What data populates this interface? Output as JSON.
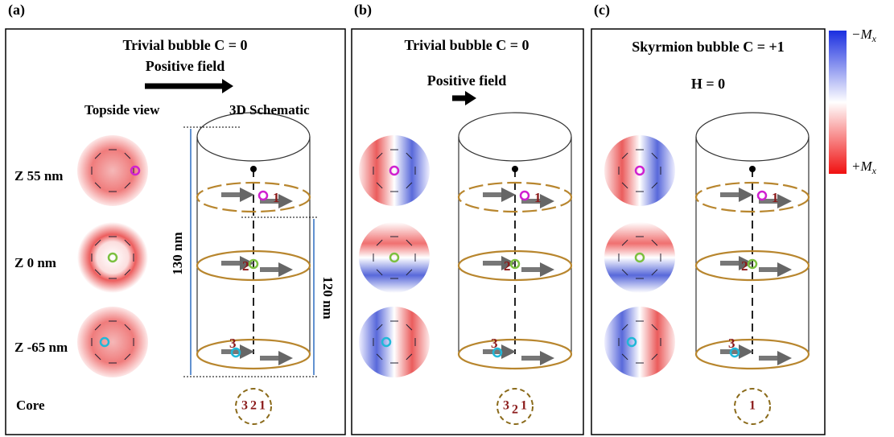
{
  "colorbar": {
    "top": "−M",
    "top_sub": "x",
    "bottom": "+M",
    "bottom_sub": "x"
  },
  "panels": [
    {
      "label": "(a)",
      "title": "Trivial bubble C = 0",
      "subtitle": "Positive field",
      "view_labels": [
        "Topside view",
        "3D Schematic"
      ],
      "layer_labels": [
        "Z 55 nm",
        "Z 0 nm",
        "Z -65 nm"
      ],
      "core_label": "Core",
      "dimensions": [
        "130 nm",
        "120 nm"
      ],
      "layer_markers": [
        "1",
        "2",
        "3"
      ],
      "core_markers": [
        "3",
        "2",
        "1"
      ]
    },
    {
      "label": "(b)",
      "title": "Trivial bubble C = 0",
      "subtitle": "Positive field",
      "layer_markers": [
        "1",
        "2",
        "3"
      ],
      "core_markers": [
        "3",
        "2",
        "1"
      ]
    },
    {
      "label": "(c)",
      "title": "Skyrmion bubble C = +1",
      "subtitle": "H = 0",
      "layer_markers": [
        "1",
        "2",
        "3"
      ],
      "core_markers": [
        "1"
      ]
    }
  ]
}
